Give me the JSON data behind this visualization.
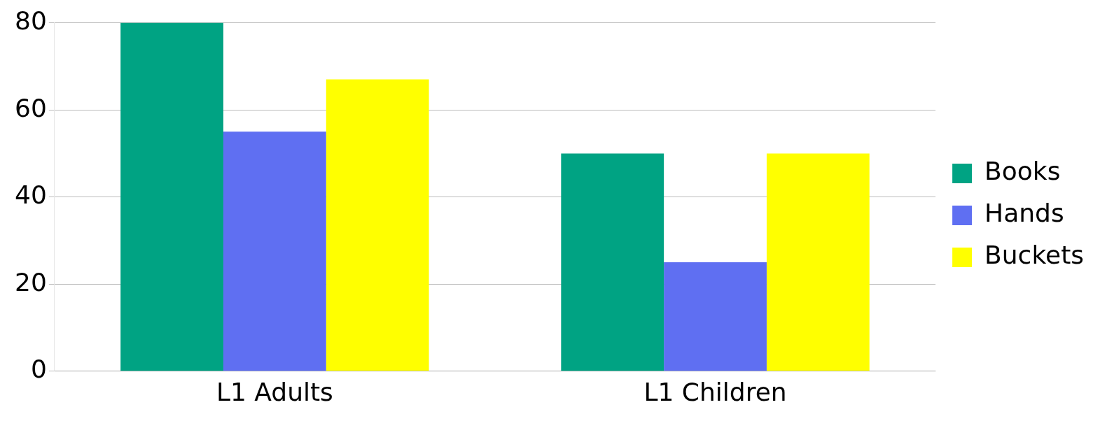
{
  "chart_data": {
    "type": "bar",
    "categories": [
      "L1 Adults",
      "L1 Children"
    ],
    "series": [
      {
        "name": "Books",
        "color": "#00a383",
        "values": [
          80,
          50
        ]
      },
      {
        "name": "Hands",
        "color": "#5f6ff2",
        "values": [
          55,
          25
        ]
      },
      {
        "name": "Buckets",
        "color": "#ffff00",
        "values": [
          67,
          50
        ]
      }
    ],
    "ylim": [
      0,
      80
    ],
    "yticks": [
      0,
      20,
      40,
      60,
      80
    ],
    "grid": "y",
    "legend": "right"
  }
}
